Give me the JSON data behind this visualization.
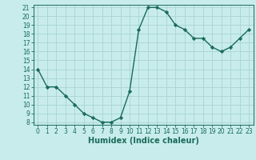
{
  "x": [
    0,
    1,
    2,
    3,
    4,
    5,
    6,
    7,
    8,
    9,
    10,
    11,
    12,
    13,
    14,
    15,
    16,
    17,
    18,
    19,
    20,
    21,
    22,
    23
  ],
  "y": [
    14,
    12,
    12,
    11,
    10,
    9,
    8.5,
    8,
    8,
    8.5,
    11.5,
    18.5,
    21,
    21,
    20.5,
    19,
    18.5,
    17.5,
    17.5,
    16.5,
    16,
    16.5,
    17.5,
    18.5
  ],
  "line_color": "#1a6b5a",
  "marker": "D",
  "marker_size": 2.2,
  "bg_color": "#c8ecec",
  "grid_color": "#aad4d4",
  "xlabel": "Humidex (Indice chaleur)",
  "ylim": [
    8,
    21
  ],
  "xlim": [
    -0.5,
    23.5
  ],
  "yticks": [
    8,
    9,
    10,
    11,
    12,
    13,
    14,
    15,
    16,
    17,
    18,
    19,
    20,
    21
  ],
  "xticks": [
    0,
    1,
    2,
    3,
    4,
    5,
    6,
    7,
    8,
    9,
    10,
    11,
    12,
    13,
    14,
    15,
    16,
    17,
    18,
    19,
    20,
    21,
    22,
    23
  ],
  "tick_color": "#1a6b5a",
  "xlabel_fontsize": 7,
  "tick_fontsize": 5.5,
  "linewidth": 1.0,
  "spine_color": "#1a6b5a"
}
